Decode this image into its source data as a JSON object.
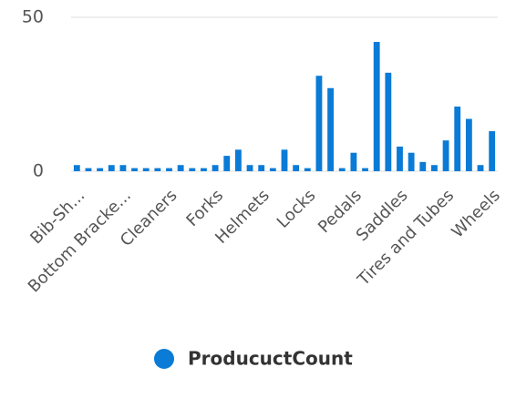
{
  "chart_data": {
    "type": "bar",
    "categories": [
      "Bib-Sh...",
      null,
      null,
      null,
      "Bottom Bracke...",
      null,
      null,
      null,
      "Cleaners",
      null,
      null,
      null,
      "Forks",
      null,
      null,
      null,
      "Helmets",
      null,
      null,
      null,
      "Locks",
      null,
      null,
      null,
      "Pedals",
      null,
      null,
      null,
      "Saddles",
      null,
      null,
      null,
      "Tires and Tubes",
      null,
      null,
      null,
      "Wheels"
    ],
    "series": [
      {
        "name": "ProducuctCount",
        "color": "#0a7bd6",
        "values": [
          2,
          1,
          1,
          2,
          2,
          1,
          1,
          1,
          1,
          2,
          1,
          1,
          2,
          5,
          7,
          2,
          2,
          1,
          7,
          2,
          1,
          31,
          27,
          1,
          6,
          1,
          42,
          32,
          8,
          6,
          3,
          2,
          10,
          21,
          17,
          2,
          13
        ]
      }
    ],
    "ylim": [
      0,
      50
    ],
    "yticks": [
      0,
      50
    ],
    "grid": true,
    "legend": "bottom"
  }
}
